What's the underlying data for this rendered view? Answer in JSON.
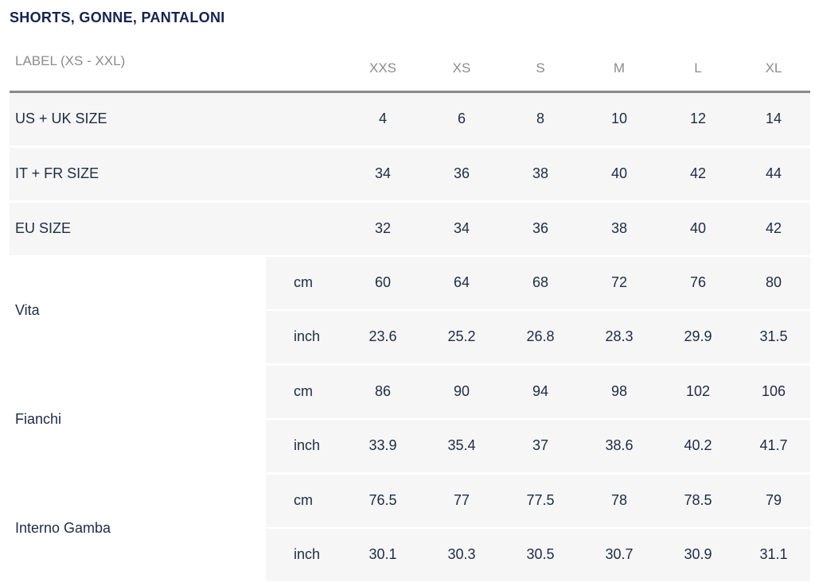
{
  "title": "SHORTS, GONNE, PANTALONI",
  "header": {
    "label": "LABEL (XS - XXL)",
    "sizes": [
      "XXS",
      "XS",
      "S",
      "M",
      "L",
      "XL"
    ]
  },
  "simple_rows": [
    {
      "label": "US + UK SIZE",
      "values": [
        "4",
        "6",
        "8",
        "10",
        "12",
        "14"
      ]
    },
    {
      "label": "IT + FR SIZE",
      "values": [
        "34",
        "36",
        "38",
        "40",
        "42",
        "44"
      ]
    },
    {
      "label": "EU SIZE",
      "values": [
        "32",
        "34",
        "36",
        "38",
        "40",
        "42"
      ]
    }
  ],
  "measure_rows": [
    {
      "label": "Vita",
      "cm": {
        "unit": "cm",
        "values": [
          "60",
          "64",
          "68",
          "72",
          "76",
          "80"
        ]
      },
      "inch": {
        "unit": "inch",
        "values": [
          "23.6",
          "25.2",
          "26.8",
          "28.3",
          "29.9",
          "31.5"
        ]
      }
    },
    {
      "label": "Fianchi",
      "cm": {
        "unit": "cm",
        "values": [
          "86",
          "90",
          "94",
          "98",
          "102",
          "106"
        ]
      },
      "inch": {
        "unit": "inch",
        "values": [
          "33.9",
          "35.4",
          "37",
          "38.6",
          "40.2",
          "41.7"
        ]
      }
    },
    {
      "label": "Interno Gamba",
      "cm": {
        "unit": "cm",
        "values": [
          "76.5",
          "77",
          "77.5",
          "78",
          "78.5",
          "79"
        ]
      },
      "inch": {
        "unit": "inch",
        "values": [
          "30.1",
          "30.3",
          "30.5",
          "30.7",
          "30.9",
          "31.1"
        ]
      }
    }
  ]
}
